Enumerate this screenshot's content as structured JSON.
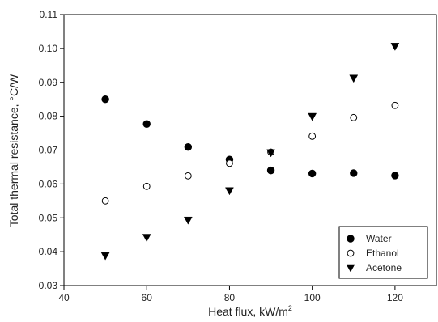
{
  "chart_data": {
    "type": "scatter",
    "title": "",
    "xlabel": "Heat flux, kW/m",
    "xlabel_sup": "2",
    "ylabel": "Total thermal resistance, °C/W",
    "xlim": [
      40,
      130
    ],
    "ylim": [
      0.03,
      0.11
    ],
    "x_ticks": [
      40,
      60,
      80,
      100,
      120
    ],
    "y_ticks": [
      0.03,
      0.04,
      0.05,
      0.06,
      0.07,
      0.08,
      0.09,
      0.1,
      0.11
    ],
    "x_tick_labels": [
      "40",
      "60",
      "80",
      "100",
      "120"
    ],
    "y_tick_labels": [
      "0.03",
      "0.04",
      "0.05",
      "0.06",
      "0.07",
      "0.08",
      "0.09",
      "0.10",
      "0.11"
    ],
    "grid": false,
    "legend_position": "bottom-right",
    "x": [
      50,
      60,
      70,
      80,
      90,
      100,
      110,
      120
    ],
    "series": [
      {
        "name": "Water",
        "marker": "filled-circle",
        "color": "#000000",
        "values": [
          0.085,
          0.0777,
          0.0709,
          0.0672,
          0.064,
          0.0631,
          0.0632,
          0.0625
        ]
      },
      {
        "name": "Ethanol",
        "marker": "open-circle",
        "color": "#000000",
        "values": [
          0.055,
          0.0593,
          0.0624,
          0.0661,
          0.0694,
          0.0741,
          0.0796,
          0.0832
        ]
      },
      {
        "name": "Acetone",
        "marker": "filled-triangle-down",
        "color": "#000000",
        "values": [
          0.0388,
          0.0442,
          0.0493,
          0.058,
          0.0692,
          0.0799,
          0.0912,
          0.1006
        ]
      }
    ]
  }
}
